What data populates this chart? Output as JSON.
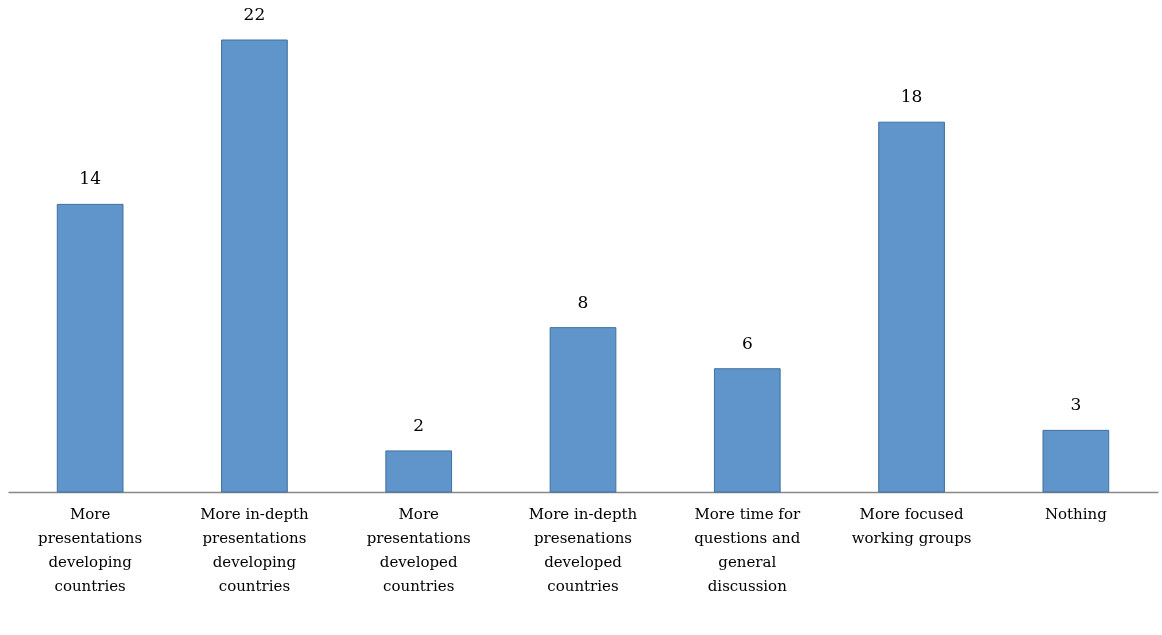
{
  "chart_data": {
    "type": "bar",
    "categories": [
      "More presentations developing countries",
      "More in-depth presentations developing countries",
      "More presentations developed countries",
      "More in-depth presenations developed countries",
      "More time for questions and general discussion",
      "More focused working groups",
      "Nothing"
    ],
    "values": [
      14,
      22,
      2,
      8,
      6,
      18,
      3
    ],
    "color": "#5f95cb",
    "data_labels": true
  }
}
